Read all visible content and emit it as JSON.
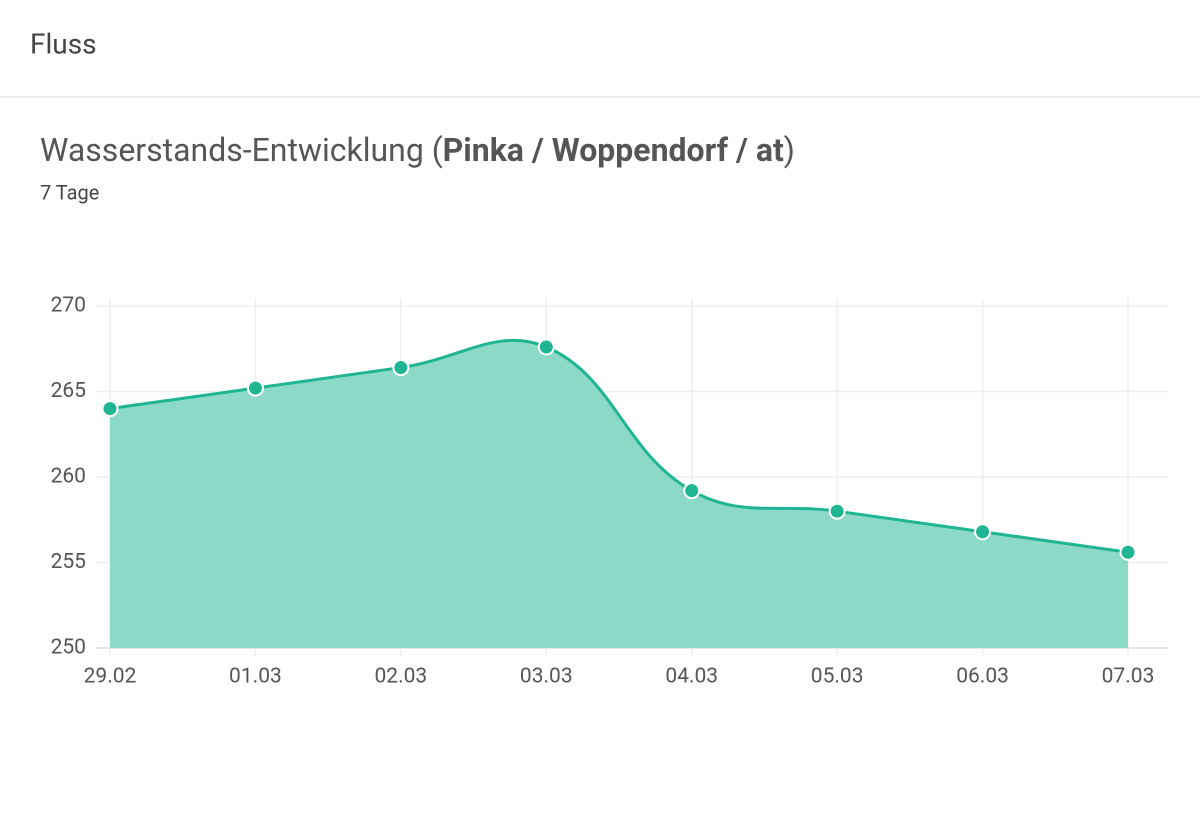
{
  "header": {
    "title": "Fluss"
  },
  "chart_data": {
    "type": "line",
    "title": [
      "Wasserstands-Entwicklung (",
      "Pinka / Woppendorf / at",
      ")"
    ],
    "subtitle": "7 Tage",
    "categories": [
      "29.02",
      "01.03",
      "02.03",
      "03.03",
      "04.03",
      "05.03",
      "06.03",
      "07.03"
    ],
    "series": [
      {
        "color": "#1fb592",
        "values": [
          264.0,
          265.2,
          266.4,
          267.6,
          259.2,
          258.0,
          256.8,
          255.6
        ]
      }
    ],
    "fill": "#8dd9c8",
    "ylim": [
      250,
      270
    ],
    "yticks": [
      250,
      255,
      260,
      265,
      270
    ],
    "grid": true
  }
}
